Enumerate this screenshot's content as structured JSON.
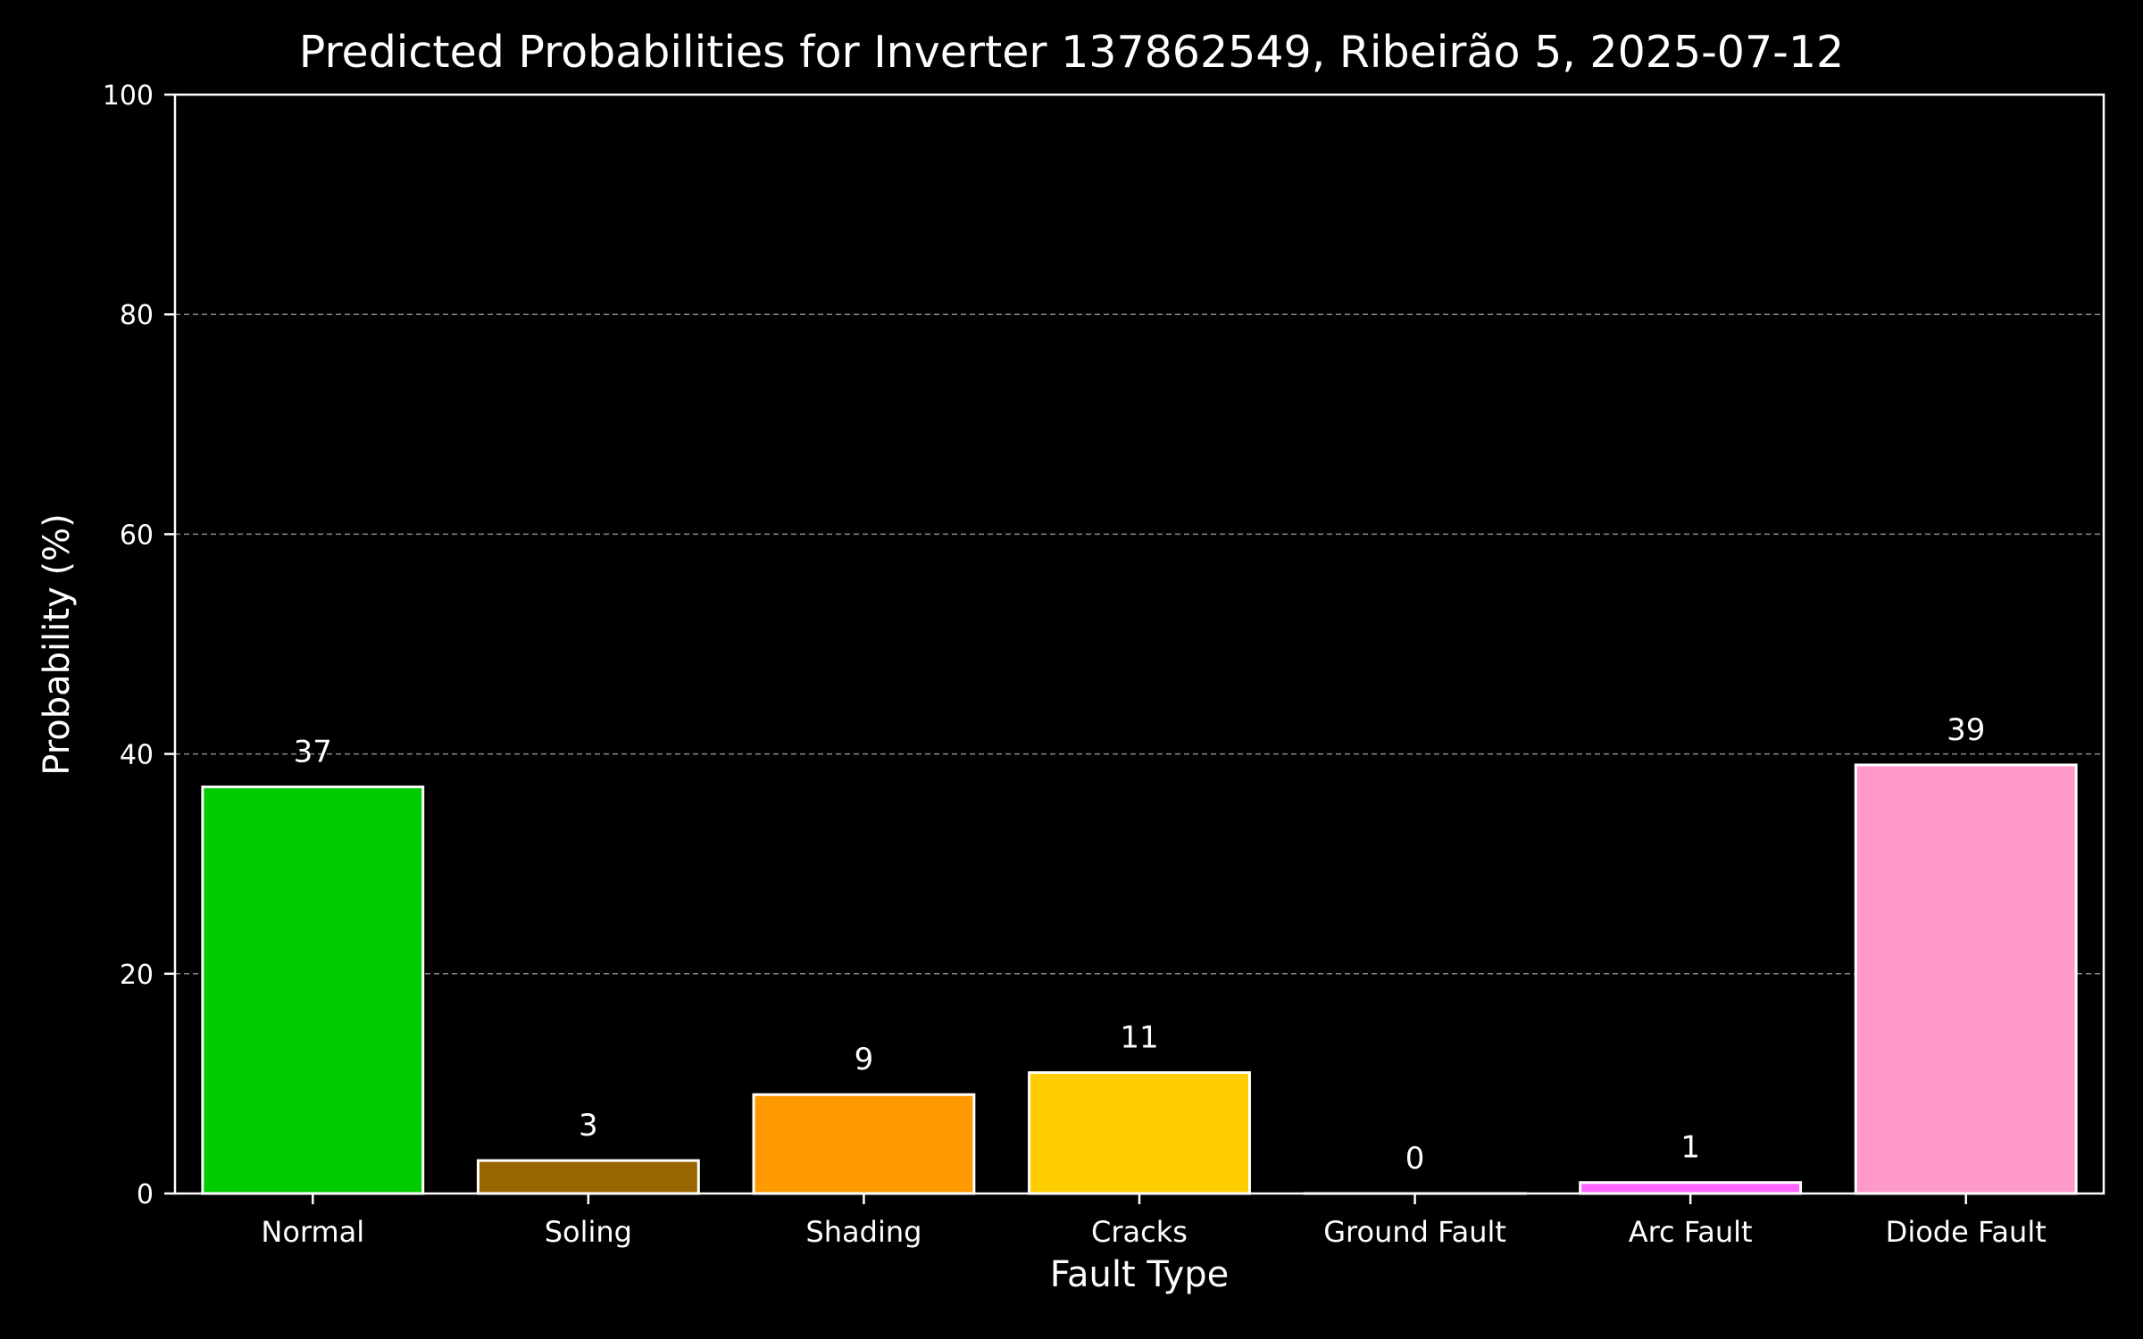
{
  "chart_data": {
    "type": "bar",
    "title": "Predicted Probabilities for Inverter 137862549, Ribeirão 5, 2025-07-12",
    "xlabel": "Fault Type",
    "ylabel": "Probability (%)",
    "categories": [
      "Normal",
      "Soling",
      "Shading",
      "Cracks",
      "Ground Fault",
      "Arc Fault",
      "Diode Fault"
    ],
    "values": [
      37,
      3,
      9,
      11,
      0,
      1,
      39
    ],
    "data_labels": [
      "37",
      "3",
      "9",
      "11",
      "0",
      "1",
      "39"
    ],
    "colors": [
      "#00cc00",
      "#996600",
      "#ff9900",
      "#ffcc00",
      "#ff3333",
      "#ff66ff",
      "#ff99cc"
    ],
    "ylim": [
      0,
      100
    ],
    "yticks": [
      0,
      20,
      40,
      60,
      80,
      100
    ],
    "grid": "horizontal dashed",
    "background": "#000000",
    "bar_edge_color": "#ffffff"
  }
}
